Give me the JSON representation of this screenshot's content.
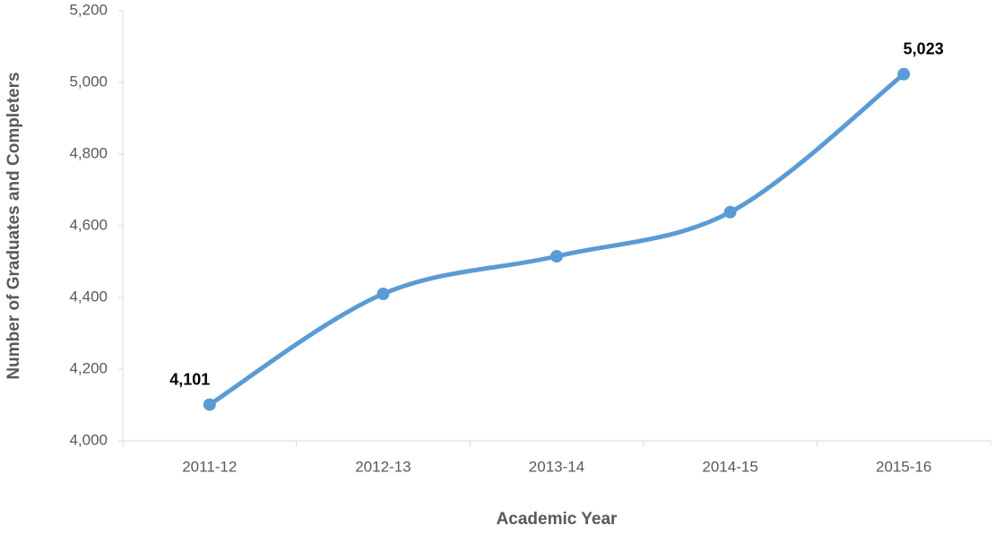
{
  "chart_data": {
    "type": "line",
    "x_label": "Academic Year",
    "y_label": "Number of Graduates and Completers",
    "categories": [
      "2011-12",
      "2012-13",
      "2013-14",
      "2014-15",
      "2015-16"
    ],
    "values": [
      4101,
      4410,
      4515,
      4638,
      5023
    ],
    "value_labels": [
      "4,101",
      null,
      null,
      null,
      "5,023"
    ],
    "color": "#5b9bd5",
    "smooth": true,
    "grid": false,
    "ylim": [
      4000,
      5200
    ],
    "yticks": [
      {
        "value": 4000,
        "label": "4,000"
      },
      {
        "value": 4200,
        "label": "4,200"
      },
      {
        "value": 4400,
        "label": "4,400"
      },
      {
        "value": 4600,
        "label": "4,600"
      },
      {
        "value": 4800,
        "label": "4,800"
      },
      {
        "value": 5000,
        "label": "5,000"
      },
      {
        "value": 5200,
        "label": "5,200"
      }
    ]
  }
}
